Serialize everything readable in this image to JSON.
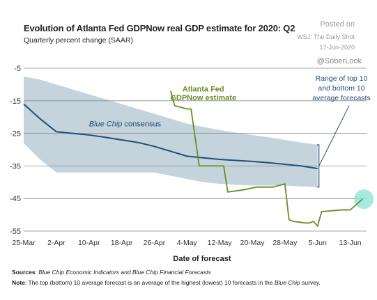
{
  "header": {
    "title": "Evolution of Atlanta Fed GDPNow real GDP estimate for 2020: Q2",
    "subtitle": "Quarterly percent change (SAAR)",
    "credit_posted": "Posted on",
    "credit_source": "WSJ: The Daily Shot",
    "credit_date": "17-Jun-2020",
    "credit_handle": "@SoberLook"
  },
  "footer": {
    "sources_label": "Sources",
    "sources_text": ": Blue Chip Economic Indicators and Blue Chip Financial Forecasts",
    "note_label": "Note",
    "note_text_1": ": The top (bottom) 10 average forecast is an average of the highest (lowest) 10 forecasts in the ",
    "note_text_italic": "Blue Chip",
    "note_text_2": " survey."
  },
  "chart_data": {
    "type": "line",
    "xlabel": "Date of forecast",
    "ylabel": "",
    "ylim": [
      -55,
      -5
    ],
    "yticks": [
      -5,
      -15,
      -25,
      -35,
      -45,
      -55
    ],
    "xlim": [
      0,
      84
    ],
    "x_ticks": [
      {
        "day": 0,
        "label": "25-Mar"
      },
      {
        "day": 8,
        "label": "2-Apr"
      },
      {
        "day": 16,
        "label": "10-Apr"
      },
      {
        "day": 24,
        "label": "18-Apr"
      },
      {
        "day": 32,
        "label": "26-Apr"
      },
      {
        "day": 40,
        "label": "4-May"
      },
      {
        "day": 48,
        "label": "12-May"
      },
      {
        "day": 56,
        "label": "20-May"
      },
      {
        "day": 64,
        "label": "28-May"
      },
      {
        "day": 72,
        "label": "5-Jun"
      },
      {
        "day": 80,
        "label": "13-Jun"
      }
    ],
    "grid": "horizontal",
    "colors": {
      "band": "#c5d3dd",
      "blue_chip": "#1f4e79",
      "gdpnow": "#6b8e23",
      "highlight": "#7fe0d2",
      "grid": "#888888"
    },
    "band": {
      "x": [
        0,
        4,
        8,
        12,
        16,
        20,
        24,
        28,
        32,
        36,
        40,
        44,
        48,
        52,
        56,
        60,
        64,
        68,
        72
      ],
      "upper": [
        -7.5,
        -8.5,
        -10,
        -11.5,
        -13,
        -14.5,
        -16,
        -17.5,
        -19,
        -20.5,
        -22,
        -23,
        -24,
        -24.8,
        -25.5,
        -26.2,
        -27,
        -27.8,
        -28.5
      ],
      "lower": [
        -28,
        -33,
        -37,
        -37,
        -37,
        -37,
        -37,
        -37,
        -37,
        -38,
        -39,
        -40,
        -40.5,
        -40.8,
        -41,
        -41,
        -41,
        -41.3,
        -41.5
      ]
    },
    "series": [
      {
        "name": "Blue Chip consensus",
        "x": [
          0,
          4,
          8,
          12,
          16,
          20,
          24,
          28,
          32,
          36,
          40,
          44,
          48,
          52,
          56,
          60,
          64,
          68,
          72
        ],
        "y": [
          -16,
          -20.5,
          -24.5,
          -25,
          -25.5,
          -26.2,
          -27,
          -27.8,
          -29,
          -30.5,
          -32,
          -32.5,
          -33,
          -33.3,
          -33.6,
          -34,
          -34.5,
          -35,
          -35.8
        ]
      },
      {
        "name": "Atlanta Fed GDPNow estimate",
        "x": [
          36,
          37,
          40,
          41,
          43,
          48,
          49,
          50,
          54,
          57,
          61,
          64,
          65,
          66,
          69,
          70,
          71,
          72,
          73,
          75,
          78,
          80,
          83
        ],
        "y": [
          -12,
          -16.5,
          -17.5,
          -17.5,
          -35,
          -35,
          -35,
          -43,
          -42.3,
          -41.5,
          -41.5,
          -40.5,
          -51.5,
          -52,
          -52.5,
          -52.5,
          -52,
          -53.5,
          -49,
          -48.8,
          -48.5,
          -48.5,
          -45.2
        ]
      }
    ],
    "annotations": {
      "gdpnow_label": [
        "Atlanta Fed",
        "GDPNow estimate"
      ],
      "blue_chip_label": "Blue Chip consensus",
      "range_label": [
        "Range of top 10",
        "and bottom 10",
        "average forecasts"
      ]
    }
  }
}
